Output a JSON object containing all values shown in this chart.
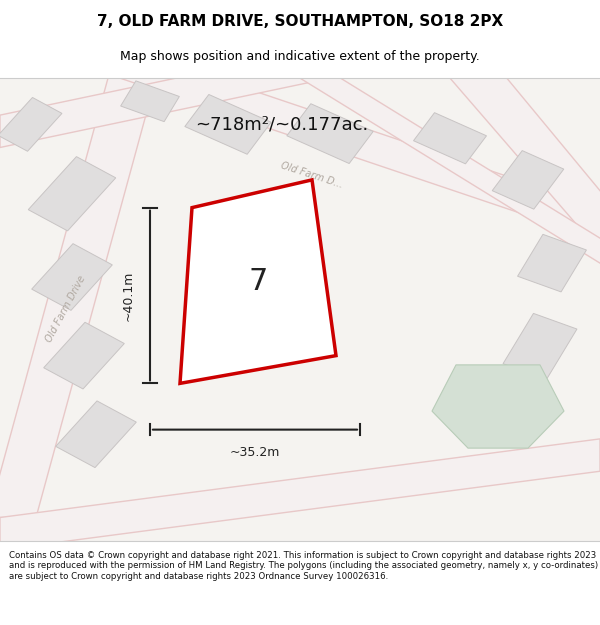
{
  "title": "7, OLD FARM DRIVE, SOUTHAMPTON, SO18 2PX",
  "subtitle": "Map shows position and indicative extent of the property.",
  "area_label": "~718m²/~0.177ac.",
  "width_label": "~35.2m",
  "height_label": "~40.1m",
  "property_number": "7",
  "footer": "Contains OS data © Crown copyright and database right 2021. This information is subject to Crown copyright and database rights 2023 and is reproduced with the permission of HM Land Registry. The polygons (including the associated geometry, namely x, y co-ordinates) are subject to Crown copyright and database rights 2023 Ordnance Survey 100026316.",
  "bg_color": "#f0eeea",
  "map_bg": "#f5f3f0",
  "road_color": "#e8c8c8",
  "road_fill": "#f5f0f0",
  "building_fill": "#e0dede",
  "building_edge": "#c8c4c4",
  "property_fill": "#ffffff",
  "property_edge": "#cc0000",
  "green_fill": "#d4e0d4",
  "green_edge": "#b8ccb8",
  "street_label_color": "#b0a8a0",
  "title_color": "#000000",
  "dim_color": "#222222",
  "header_bg": "#ffffff",
  "footer_bg": "#ffffff"
}
